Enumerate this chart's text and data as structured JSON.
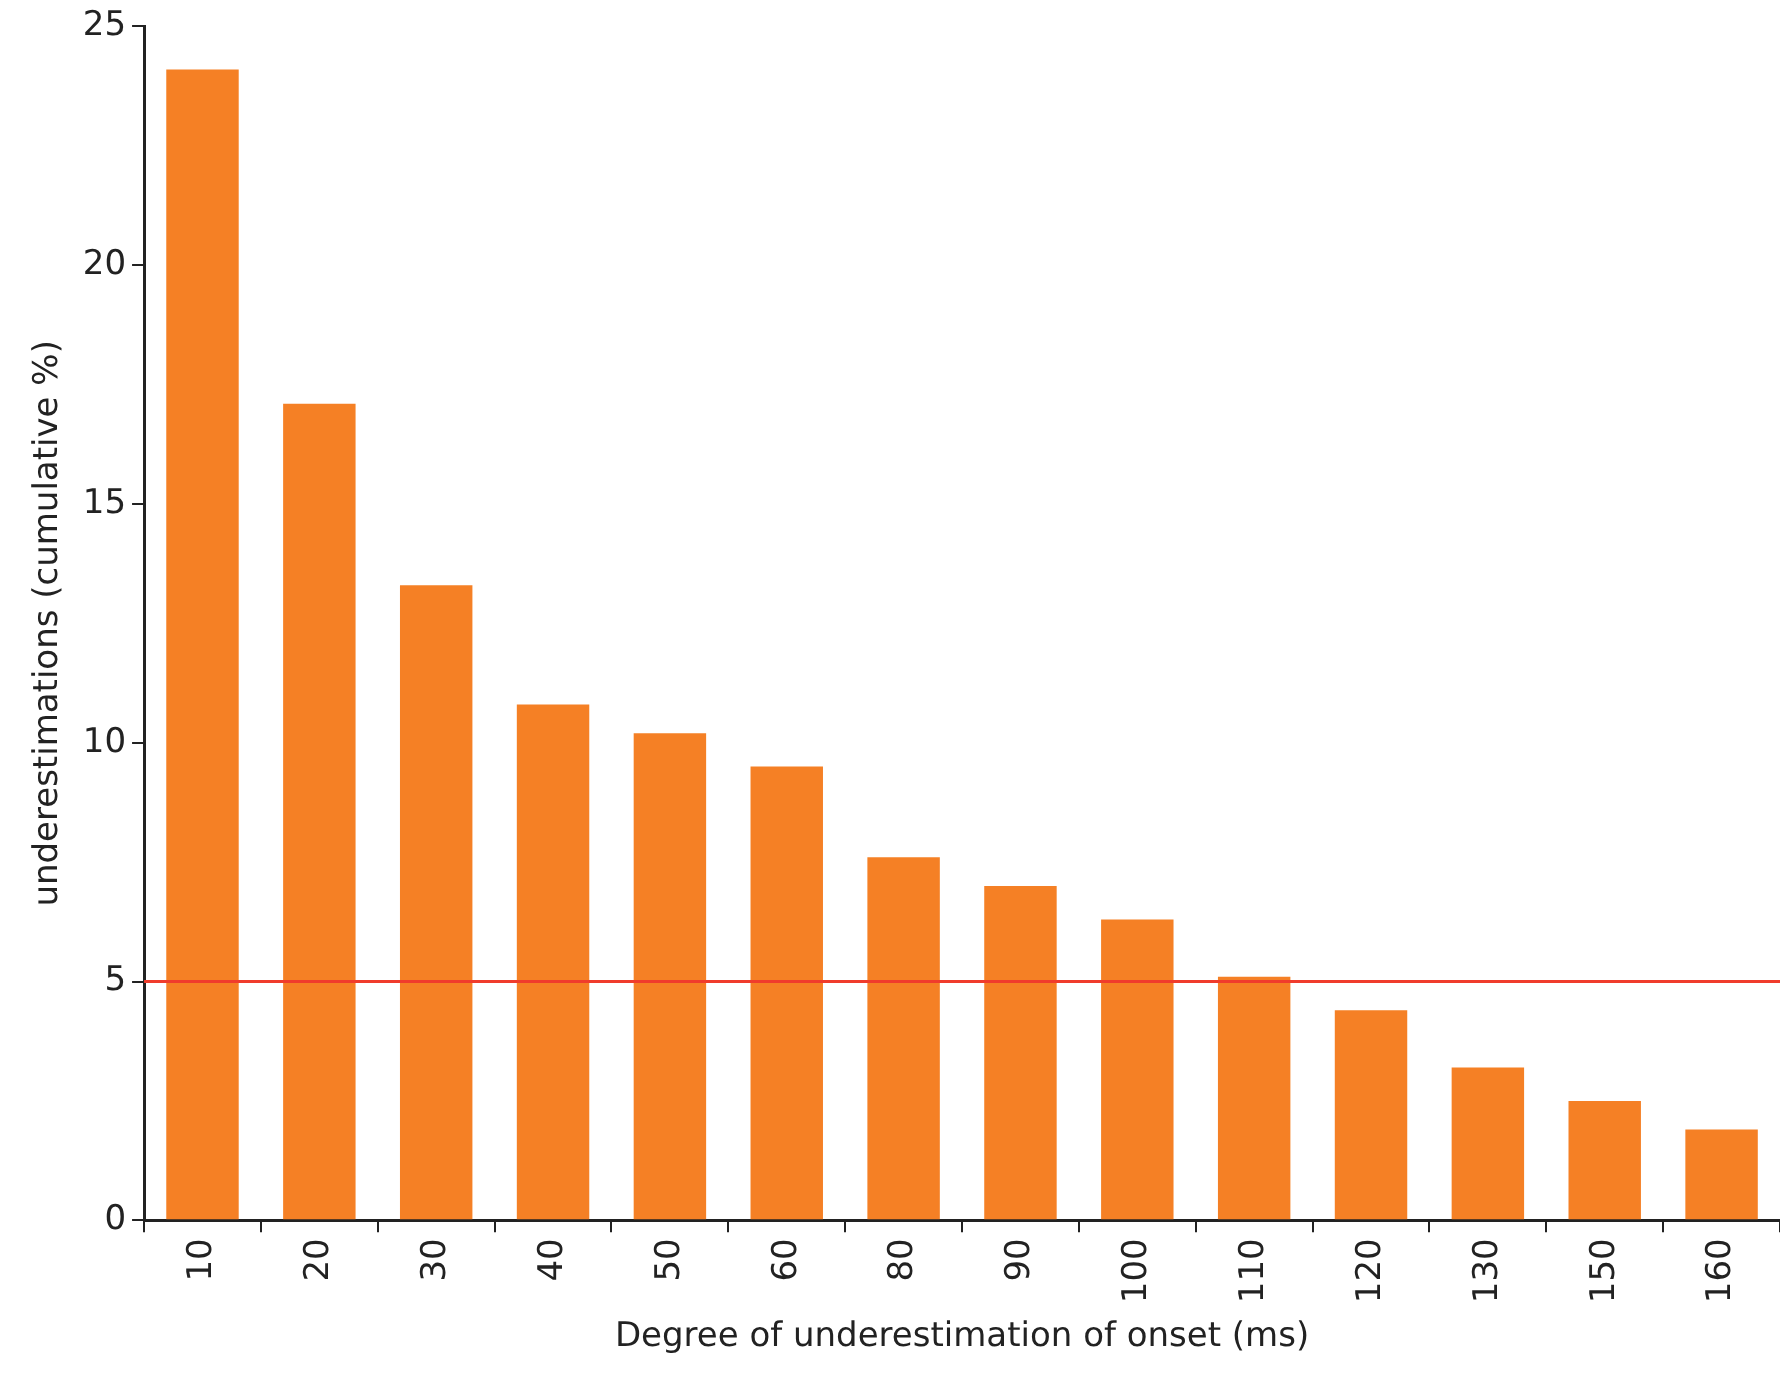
{
  "chart_data": {
    "type": "bar",
    "xlabel": "Degree of underestimation of onset (ms)",
    "ylabel": "underestimations (cumulative %)",
    "categories": [
      "10",
      "20",
      "30",
      "40",
      "50",
      "60",
      "80",
      "90",
      "100",
      "110",
      "120",
      "130",
      "150",
      "160"
    ],
    "values": [
      24.1,
      17.1,
      13.3,
      10.8,
      10.2,
      9.5,
      7.6,
      7.0,
      6.3,
      5.1,
      4.4,
      3.2,
      2.5,
      1.9
    ],
    "color": "#f58025",
    "ylim": [
      0,
      25
    ],
    "yticks": [
      0,
      5,
      10,
      15,
      20,
      25
    ],
    "grid": false,
    "legend": false,
    "ref_lines": [
      {
        "axis": "y",
        "value": 5,
        "color": "#f03c2c"
      }
    ]
  }
}
